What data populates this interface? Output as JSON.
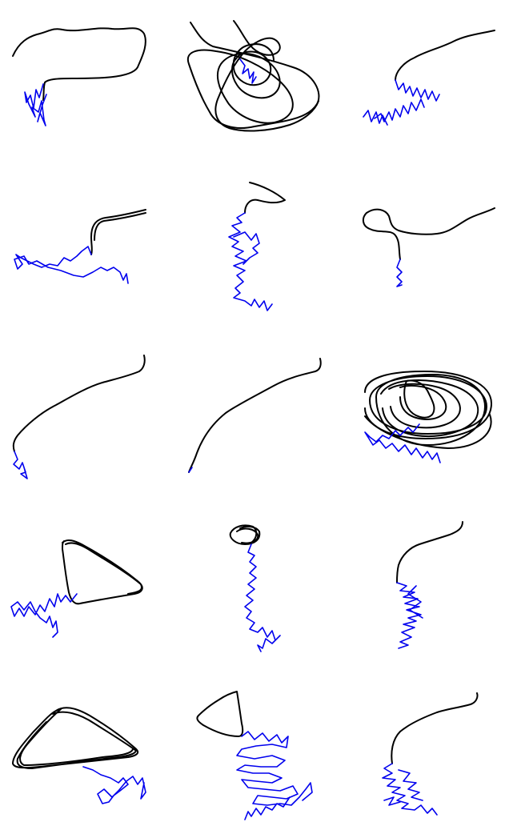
{
  "figure": {
    "rows": 5,
    "cols": 3,
    "background_color": "#ffffff",
    "colors": {
      "loop_trace": "#000000",
      "jitter_trace": "#0000ee"
    }
  },
  "panels": [
    {
      "row": 1,
      "col": 1,
      "pattern": "open-curve-then-jitter"
    },
    {
      "row": 1,
      "col": 2,
      "pattern": "tangled-loops"
    },
    {
      "row": 1,
      "col": 3,
      "pattern": "arc-then-zigzag"
    },
    {
      "row": 2,
      "col": 1,
      "pattern": "hook-then-wander"
    },
    {
      "row": 2,
      "col": 2,
      "pattern": "hook-then-vertical-jitter"
    },
    {
      "row": 2,
      "col": 3,
      "pattern": "loop-then-short-jitter"
    },
    {
      "row": 3,
      "col": 1,
      "pattern": "long-arc-then-jitter"
    },
    {
      "row": 3,
      "col": 2,
      "pattern": "long-arc"
    },
    {
      "row": 3,
      "col": 3,
      "pattern": "dense-orbits-then-zigzag"
    },
    {
      "row": 4,
      "col": 1,
      "pattern": "triangle-then-zigzag"
    },
    {
      "row": 4,
      "col": 2,
      "pattern": "small-loop-then-vertical-jitter"
    },
    {
      "row": 4,
      "col": 3,
      "pattern": "arc-then-vertical-zigzag"
    },
    {
      "row": 5,
      "col": 1,
      "pattern": "triangle-then-wander"
    },
    {
      "row": 5,
      "col": 2,
      "pattern": "triangle-then-dense-zigzag"
    },
    {
      "row": 5,
      "col": 3,
      "pattern": "arc-then-zigzag-cluster"
    }
  ]
}
